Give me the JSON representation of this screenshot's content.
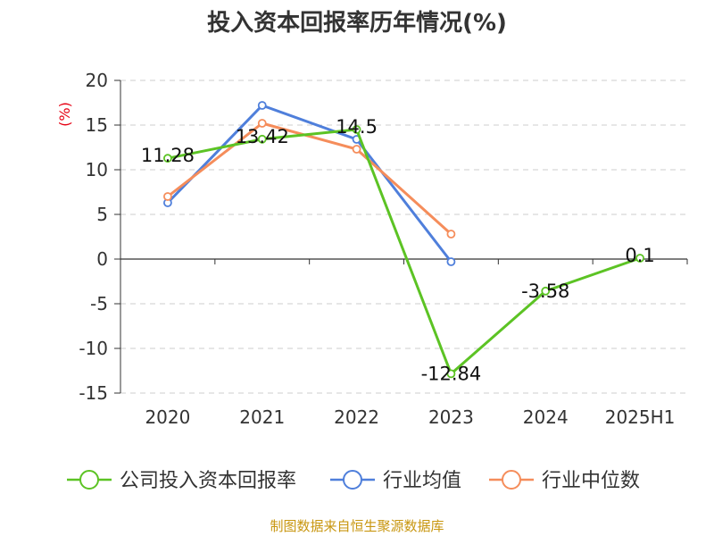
{
  "chart_data": {
    "type": "line",
    "title": "投入资本回报率历年情况(%)",
    "ylabel": "(%)",
    "categories": [
      "2020",
      "2021",
      "2022",
      "2023",
      "2024",
      "2025H1"
    ],
    "ylim": [
      -15,
      20
    ],
    "yticks": [
      20,
      15,
      10,
      5,
      0,
      -5,
      -10,
      -15
    ],
    "grid": true,
    "legend_position": "bottom",
    "series": [
      {
        "name": "公司投入资本回报率",
        "color": "#5cc324",
        "values": [
          11.28,
          13.42,
          14.5,
          -12.84,
          -3.58,
          0.1
        ],
        "labels": [
          "11.28",
          "13.42",
          "14.5",
          "-12.84",
          "-3.58",
          "0.1"
        ]
      },
      {
        "name": "行业均值",
        "color": "#4f7fdb",
        "values": [
          6.3,
          17.2,
          13.4,
          -0.3,
          null,
          null
        ]
      },
      {
        "name": "行业中位数",
        "color": "#f58d5b",
        "values": [
          7.0,
          15.2,
          12.3,
          2.8,
          null,
          null
        ]
      }
    ]
  },
  "source": "制图数据来自恒生聚源数据库"
}
